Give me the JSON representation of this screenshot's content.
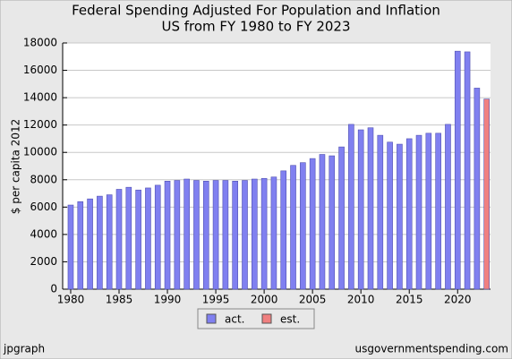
{
  "chart_data": {
    "type": "bar",
    "title": "Federal Spending Adjusted For Population and Inflation",
    "subtitle": "US from FY 1980 to FY 2023",
    "y_label": "$ per capita 2012",
    "x": [
      1980,
      1981,
      1982,
      1983,
      1984,
      1985,
      1986,
      1987,
      1988,
      1989,
      1990,
      1991,
      1992,
      1993,
      1994,
      1995,
      1996,
      1997,
      1998,
      1999,
      2000,
      2001,
      2002,
      2003,
      2004,
      2005,
      2006,
      2007,
      2008,
      2009,
      2010,
      2011,
      2012,
      2013,
      2014,
      2015,
      2016,
      2017,
      2018,
      2019,
      2020,
      2021,
      2022,
      2023
    ],
    "series": [
      {
        "name": "act.",
        "color": "#8080f0",
        "values": [
          6150,
          6400,
          6600,
          6800,
          6900,
          7300,
          7450,
          7250,
          7400,
          7600,
          7900,
          7950,
          8050,
          7950,
          7900,
          7950,
          7950,
          7900,
          7950,
          8050,
          8100,
          8200,
          8650,
          9050,
          9250,
          9550,
          9850,
          9750,
          10400,
          12050,
          11650,
          11800,
          11250,
          10750,
          10600,
          11000,
          11250,
          11400,
          11400,
          12050,
          17400,
          17350,
          14700,
          null
        ]
      },
      {
        "name": "est.",
        "color": "#f08080",
        "values": [
          null,
          null,
          null,
          null,
          null,
          null,
          null,
          null,
          null,
          null,
          null,
          null,
          null,
          null,
          null,
          null,
          null,
          null,
          null,
          null,
          null,
          null,
          null,
          null,
          null,
          null,
          null,
          null,
          null,
          null,
          null,
          null,
          null,
          null,
          null,
          null,
          null,
          null,
          null,
          null,
          null,
          null,
          null,
          13900
        ]
      }
    ],
    "xlim": [
      1979.17,
      2023.4
    ],
    "xticks": [
      1980,
      1985,
      1990,
      1995,
      2000,
      2005,
      2010,
      2015,
      2020
    ],
    "ylim": [
      0,
      18000
    ],
    "yticks": [
      0,
      2000,
      4000,
      6000,
      8000,
      10000,
      12000,
      14000,
      16000,
      18000
    ],
    "grid": true,
    "footer_left": "jpgraph",
    "footer_right": "usgovernmentspending.com"
  }
}
